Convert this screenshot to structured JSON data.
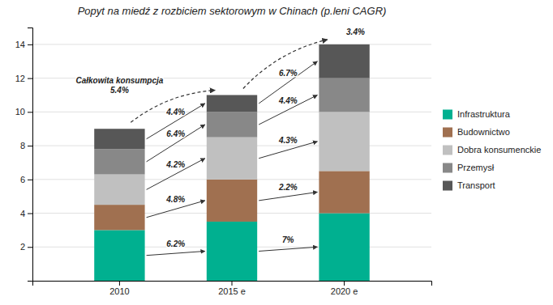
{
  "chart_data": {
    "type": "bar",
    "title": "Popyt na miedź z rozbiciem sektorowym w Chinach (p.leni CAGR)",
    "categories": [
      "2010",
      "2015 e",
      "2020 e"
    ],
    "series": [
      {
        "name": "Infrastruktura",
        "color": "#00b090",
        "values": [
          3.0,
          3.5,
          4.0
        ],
        "annotations": [
          "6.2%",
          "7%"
        ]
      },
      {
        "name": "Budownictwo",
        "color": "#a07050",
        "values": [
          1.5,
          2.5,
          2.5
        ],
        "annotations": [
          "4.8%",
          "2.2%"
        ]
      },
      {
        "name": "Dobra konsumenckie",
        "color": "#c0c0c0",
        "values": [
          1.8,
          2.5,
          3.5
        ],
        "annotations": [
          "4.2%",
          "4.3%"
        ]
      },
      {
        "name": "Przemysł",
        "color": "#888888",
        "values": [
          1.5,
          1.5,
          2.0
        ],
        "annotations": [
          "6.4%",
          "4.4%"
        ]
      },
      {
        "name": "Transport",
        "color": "#575757",
        "values": [
          1.2,
          1.0,
          2.0
        ],
        "annotations": [
          "4.4%",
          "6.7%"
        ]
      }
    ],
    "stacked": true,
    "ylim": [
      0,
      15
    ],
    "yticks": [
      2,
      4,
      6,
      8,
      10,
      12,
      14
    ],
    "grid": true,
    "legend": "right",
    "annotations": [
      "Całkowita konsumpcja\n5.4%",
      "3.4%"
    ]
  }
}
